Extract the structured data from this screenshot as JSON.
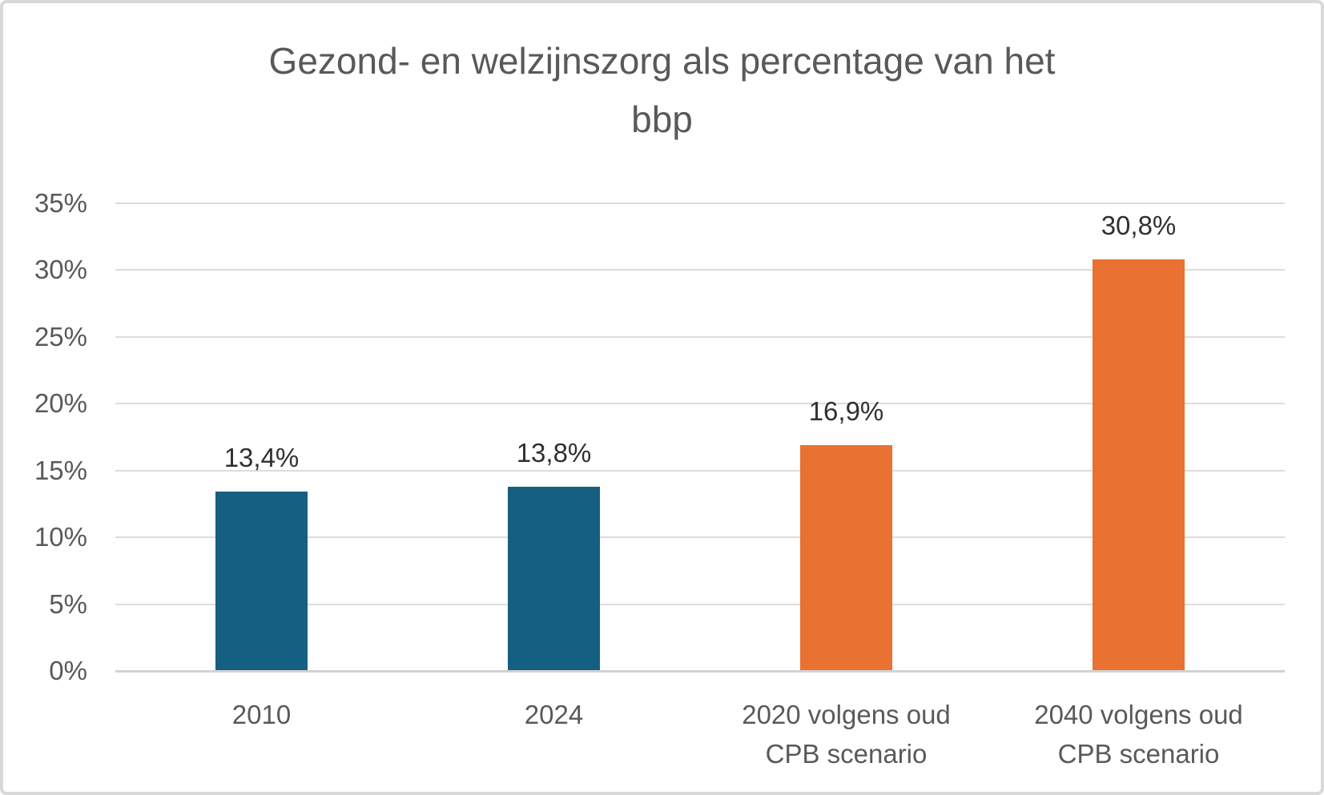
{
  "chart_data": {
    "type": "bar",
    "title": "Gezond- en welzijnszorg als percentage van het bbp",
    "title_lines": [
      "Gezond- en welzijnszorg als percentage van het",
      "bbp"
    ],
    "categories": [
      "2010",
      "2024",
      "2020 volgens oud CPB scenario",
      "2040 volgens oud CPB scenario"
    ],
    "category_lines": [
      [
        "2010"
      ],
      [
        "2024"
      ],
      [
        "2020 volgens oud",
        "CPB scenario"
      ],
      [
        "2040 volgens oud",
        "CPB scenario"
      ]
    ],
    "values": [
      13.4,
      13.8,
      16.9,
      30.8
    ],
    "data_labels": [
      "13,4%",
      "13,8%",
      "16,9%",
      "30,8%"
    ],
    "bar_colors": [
      "#156082",
      "#156082",
      "#E97132",
      "#E97132"
    ],
    "xlabel": "",
    "ylabel": "",
    "ylim": [
      0,
      35
    ],
    "ytick_step": 5,
    "ytick_labels": [
      "0%",
      "5%",
      "10%",
      "15%",
      "20%",
      "25%",
      "30%",
      "35%"
    ],
    "grid": true,
    "legend": false
  },
  "colors": {
    "series_teal": "#156082",
    "series_orange": "#E97132",
    "gridline": "#DCDCDC",
    "axis_line": "#D2D2D2",
    "title_text": "#595959",
    "axis_text": "#595959",
    "data_label_text": "#303030",
    "figure_border": "#D8D8D8",
    "background": "#FFFFFF"
  }
}
